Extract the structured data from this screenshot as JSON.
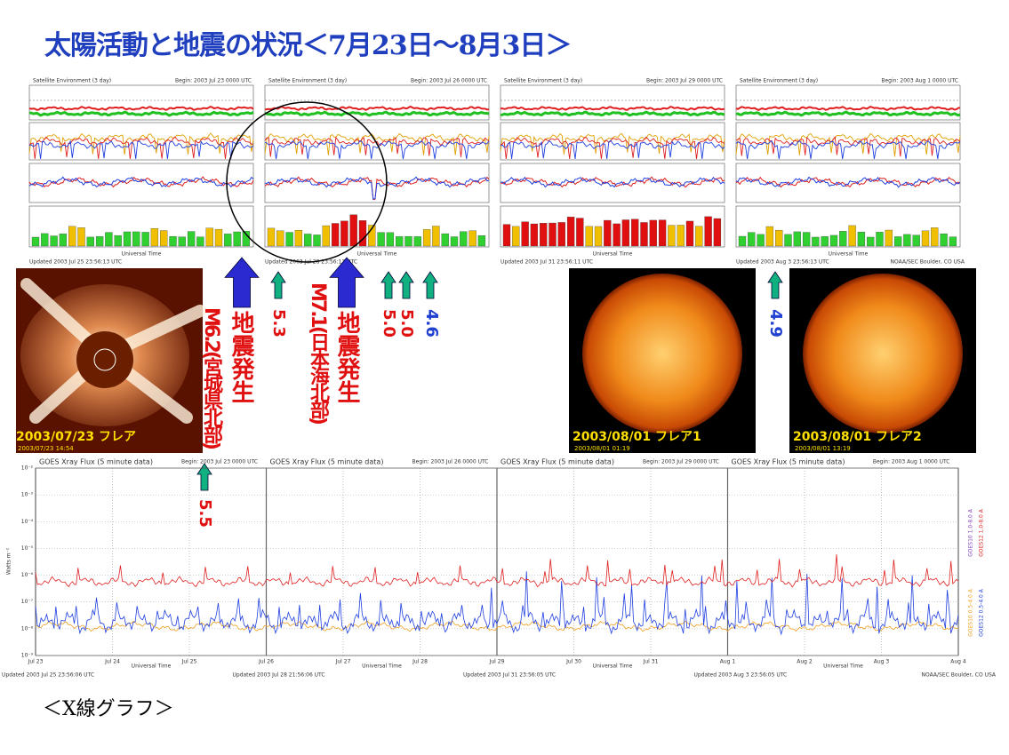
{
  "title": "太陽活動と地震の状況＜7月23日～8月3日＞",
  "satellite": {
    "header": "Satellite Environment (3 day)",
    "x_label": "Universal Time",
    "credit": "NOAA/SEC Boulder, CO USA",
    "panels": [
      {
        "begin": "Begin: 2003 Jul 23 0000 UTC",
        "updated": "Updated 2003 Jul 25 23:56:13 UTC"
      },
      {
        "begin": "Begin: 2003 Jul 26 0000 UTC",
        "updated": "Updated 2003 Jul 28 23:56:13 UTC"
      },
      {
        "begin": "Begin: 2003 Jul 29 0000 UTC",
        "updated": "Updated 2003 Jul 31 23:56:11 UTC"
      },
      {
        "begin": "Begin: 2003 Aug 1 0000 UTC",
        "updated": "Updated 2003 Aug 3 23:56:13 UTC"
      }
    ]
  },
  "earthquakes": [
    {
      "event": "地震発生",
      "detail": "M6.2(宮城県北部)"
    },
    {
      "event": "地震発生",
      "detail": "M7.1(日本海北部)"
    }
  ],
  "magnitudes": [
    "5.3",
    "5.0",
    "5.0",
    "4.6",
    "4.9",
    "5.5"
  ],
  "images": [
    {
      "caption": "2003/07/23  フレア",
      "stamp": "2003/07/23 14:54"
    },
    {
      "caption": "2003/08/01  フレア1",
      "stamp": "2003/08/01 01:19"
    },
    {
      "caption": "2003/08/01  フレア2",
      "stamp": "2003/08/01 13:19"
    }
  ],
  "xray": {
    "header": "GOES Xray Flux (5 minute data)",
    "y_label": "Watts m⁻²",
    "x_label": "Universal Time",
    "credit": "NOAA/SEC Boulder, CO USA",
    "yticks": [
      "10⁻²",
      "10⁻³",
      "10⁻⁴",
      "10⁻⁵",
      "10⁻⁶",
      "10⁻⁷",
      "10⁻⁸",
      "10⁻⁹"
    ],
    "xticks": [
      "Jul 23",
      "Jul 24",
      "Jul 25",
      "Jul 26",
      "Jul 27",
      "Jul 28",
      "Jul 29",
      "Jul 30",
      "Jul 31",
      "Aug 1",
      "Aug 2",
      "Aug 3",
      "Aug 4"
    ],
    "legend": [
      "GOES10 1.0-8.0 A",
      "GOES12 1.0-8.0 A",
      "GOES10 0.5-4.0 A",
      "GOES12 0.5-4.0 A"
    ],
    "panels": [
      {
        "begin": "Begin: 2003 Jul 23 0000 UTC",
        "updated": "Updated 2003 Jul 25 23:56:06 UTC"
      },
      {
        "begin": "Begin: 2003 Jul 26 0000 UTC",
        "updated": "Updated 2003 Jul 28 21:56:06 UTC"
      },
      {
        "begin": "Begin: 2003 Jul 29 0000 UTC",
        "updated": "Updated 2003 Jul 31 23:56:05 UTC"
      },
      {
        "begin": "Begin: 2003 Aug 1 0000 UTC",
        "updated": "Updated 2003 Aug 3 23:56:05 UTC"
      }
    ]
  },
  "caption": "＜X線グラフ＞"
}
